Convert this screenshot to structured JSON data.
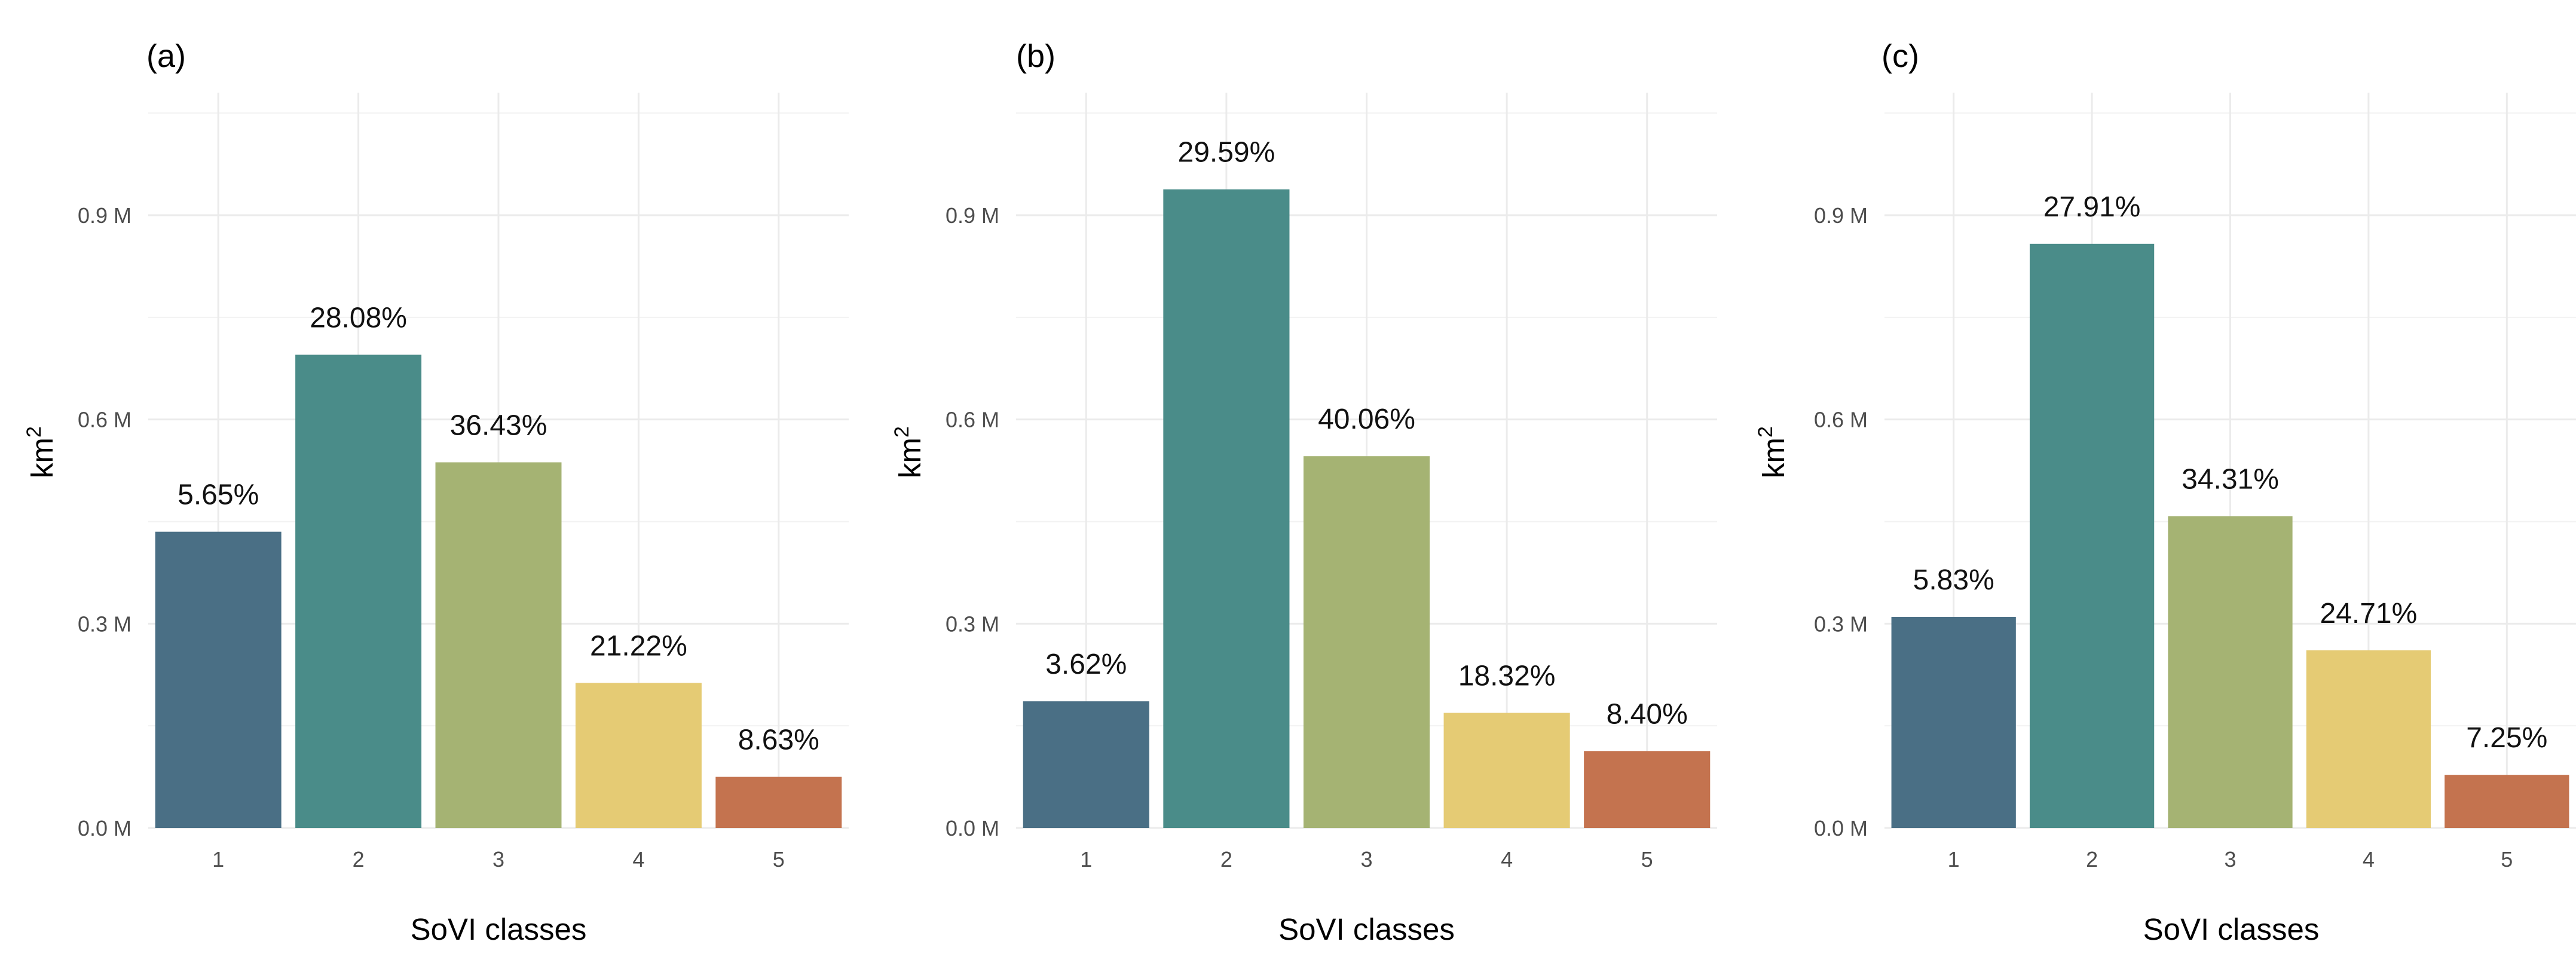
{
  "colors": {
    "class_1": "#4a6f85",
    "class_2": "#4a8c89",
    "class_3": "#a5b373",
    "class_4": "#e5cb74",
    "class_5": "#c4734f"
  },
  "chart_data": [
    {
      "type": "bar",
      "panel": "(a)",
      "categories": [
        "1",
        "2",
        "3",
        "4",
        "5"
      ],
      "values": [
        0.435,
        0.695,
        0.537,
        0.213,
        0.075
      ],
      "value_unit": "M km²",
      "data_labels": [
        "5.65%",
        "28.08%",
        "36.43%",
        "21.22%",
        "8.63%"
      ],
      "xlabel": "SoVI classes",
      "ylabel": "km",
      "ylabel_superscript": "2",
      "ylim": [
        0,
        1.08
      ],
      "yticks": [
        0,
        0.3,
        0.6,
        0.9
      ],
      "ytick_labels": [
        "0.0 M",
        "0.3 M",
        "0.6 M",
        "0.9 M"
      ],
      "grid": true
    },
    {
      "type": "bar",
      "panel": "(b)",
      "categories": [
        "1",
        "2",
        "3",
        "4",
        "5"
      ],
      "values": [
        0.186,
        0.938,
        0.546,
        0.169,
        0.113
      ],
      "value_unit": "M km²",
      "data_labels": [
        "3.62%",
        "29.59%",
        "40.06%",
        "18.32%",
        "8.40%"
      ],
      "xlabel": "SoVI classes",
      "ylabel": "km",
      "ylabel_superscript": "2",
      "ylim": [
        0,
        1.08
      ],
      "yticks": [
        0,
        0.3,
        0.6,
        0.9
      ],
      "ytick_labels": [
        "0.0 M",
        "0.3 M",
        "0.6 M",
        "0.9 M"
      ],
      "grid": true
    },
    {
      "type": "bar",
      "panel": "(c)",
      "categories": [
        "1",
        "2",
        "3",
        "4",
        "5"
      ],
      "values": [
        0.31,
        0.858,
        0.458,
        0.261,
        0.078
      ],
      "value_unit": "M km²",
      "data_labels": [
        "5.83%",
        "27.91%",
        "34.31%",
        "24.71%",
        "7.25%"
      ],
      "xlabel": "SoVI classes",
      "ylabel": "km",
      "ylabel_superscript": "2",
      "ylim": [
        0,
        1.08
      ],
      "yticks": [
        0,
        0.3,
        0.6,
        0.9
      ],
      "ytick_labels": [
        "0.0 M",
        "0.3 M",
        "0.6 M",
        "0.9 M"
      ],
      "grid": true
    }
  ]
}
